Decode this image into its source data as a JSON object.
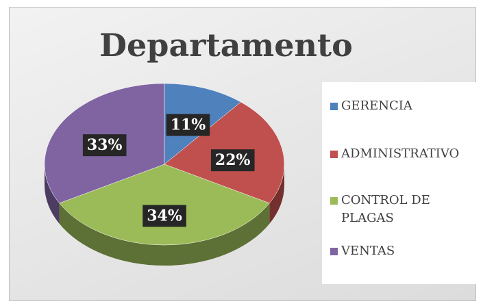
{
  "chart_data": {
    "type": "pie",
    "title": "Departamento",
    "categories": [
      "GERENCIA",
      "ADMINISTRATIVO",
      "CONTROL DE PLAGAS",
      "VENTAS"
    ],
    "values": [
      11,
      22,
      34,
      33
    ],
    "value_labels": [
      "11%",
      "22%",
      "34%",
      "33%"
    ],
    "colors": [
      "#4f81bd",
      "#c0504d",
      "#9bbb59",
      "#8064a2"
    ],
    "legend": "right"
  }
}
